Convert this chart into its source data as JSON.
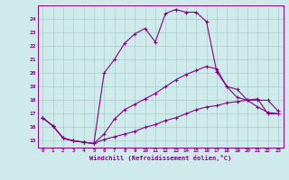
{
  "xlabel": "Windchill (Refroidissement éolien,°C)",
  "background_color": "#ceeaea",
  "line_color": "#880088",
  "grid_color": "#aacccc",
  "xlim": [
    -0.5,
    23.5
  ],
  "ylim": [
    14.5,
    25.0
  ],
  "yticks": [
    15,
    16,
    17,
    18,
    19,
    20,
    21,
    22,
    23,
    24
  ],
  "xticks": [
    0,
    1,
    2,
    3,
    4,
    5,
    6,
    7,
    8,
    9,
    10,
    11,
    12,
    13,
    14,
    15,
    16,
    17,
    18,
    19,
    20,
    21,
    22,
    23
  ],
  "line_top_x": [
    0,
    1,
    2,
    3,
    4,
    5,
    6,
    7,
    8,
    9,
    10,
    11,
    12,
    13,
    14,
    15,
    16,
    17,
    18,
    19,
    20,
    21,
    22,
    23
  ],
  "line_top_y": [
    16.7,
    16.1,
    15.2,
    15.0,
    14.9,
    14.8,
    20.0,
    21.0,
    22.2,
    22.9,
    23.3,
    22.3,
    24.4,
    24.7,
    24.5,
    24.5,
    23.8,
    20.1,
    19.0,
    18.2,
    18.0,
    18.1,
    17.0,
    17.0
  ],
  "line_mid_x": [
    0,
    1,
    2,
    3,
    4,
    5,
    6,
    7,
    8,
    9,
    10,
    11,
    12,
    13,
    14,
    15,
    16,
    17,
    18,
    19,
    20,
    21,
    22,
    23
  ],
  "line_mid_y": [
    16.7,
    16.1,
    15.2,
    15.0,
    14.9,
    14.8,
    15.5,
    16.6,
    17.3,
    17.7,
    18.1,
    18.5,
    19.0,
    19.5,
    19.9,
    20.2,
    20.5,
    20.3,
    19.0,
    18.8,
    18.0,
    18.0,
    18.0,
    17.2
  ],
  "line_bot_x": [
    0,
    1,
    2,
    3,
    4,
    5,
    6,
    7,
    8,
    9,
    10,
    11,
    12,
    13,
    14,
    15,
    16,
    17,
    18,
    19,
    20,
    21,
    22,
    23
  ],
  "line_bot_y": [
    16.7,
    16.1,
    15.2,
    15.0,
    14.9,
    14.8,
    15.1,
    15.3,
    15.5,
    15.7,
    16.0,
    16.2,
    16.5,
    16.7,
    17.0,
    17.3,
    17.5,
    17.6,
    17.8,
    17.9,
    18.0,
    17.5,
    17.1,
    17.0
  ]
}
